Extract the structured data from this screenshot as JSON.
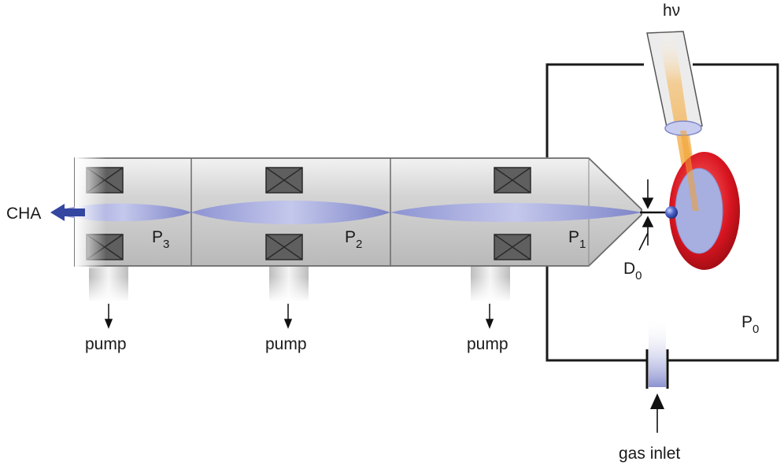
{
  "labels": {
    "cha": "CHA",
    "p3": "P",
    "p3_sub": "3",
    "p2": "P",
    "p2_sub": "2",
    "p1": "P",
    "p1_sub": "1",
    "p0": "P",
    "p0_sub": "0",
    "d0": "D",
    "d0_sub": "0",
    "hv": "hν",
    "gas_inlet": "gas inlet",
    "pumps": [
      "pump",
      "pump",
      "pump"
    ]
  },
  "colors": {
    "tube": "#dcdcdc",
    "tube_stroke": "#6b6b6b",
    "beam": "#7f86cc",
    "coil": "#5f5f5f",
    "ring": "#d2141e",
    "sample": "#9fa6dc",
    "arrow": "#3446a0",
    "light": "#f0a030",
    "chamber": "#1a1a1a"
  }
}
